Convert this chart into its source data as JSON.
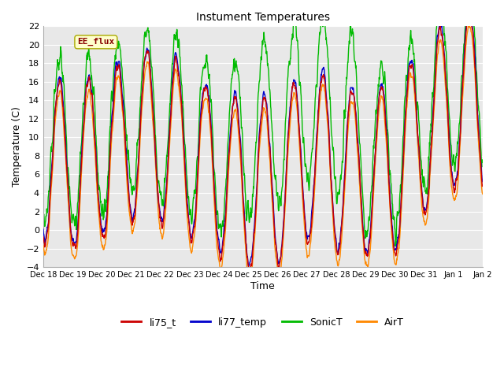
{
  "title": "Instument Temperatures",
  "xlabel": "Time",
  "ylabel": "Temperature (C)",
  "ylim": [
    -4,
    22
  ],
  "yticks": [
    -4,
    -2,
    0,
    2,
    4,
    6,
    8,
    10,
    12,
    14,
    16,
    18,
    20,
    22
  ],
  "annotation_text": "EE_flux",
  "annotation_bg": "#ffffcc",
  "annotation_border": "#aaaa00",
  "annotation_fg": "#880000",
  "series_colors": {
    "li75_t": "#cc0000",
    "li77_temp": "#0000cc",
    "SonicT": "#00bb00",
    "AirT": "#ff8800"
  },
  "fig_bg": "#ffffff",
  "ax_bg": "#e8e8e8",
  "grid_color": "#ffffff",
  "x_start": 0,
  "x_end": 15,
  "x_ticks": [
    0,
    1,
    2,
    3,
    4,
    5,
    6,
    7,
    8,
    9,
    10,
    11,
    12,
    13,
    14,
    15
  ],
  "x_tick_labels": [
    "Dec 18",
    "Dec 19",
    "Dec 20",
    "Dec 21",
    "Dec 22",
    "Dec 23",
    "Dec 24",
    "Dec 25",
    "Dec 26",
    "Dec 27",
    "Dec 28",
    "Dec 29",
    "Dec 30",
    "Dec 31",
    "Jan 1",
    "Jan 2"
  ],
  "lw": 1.0
}
